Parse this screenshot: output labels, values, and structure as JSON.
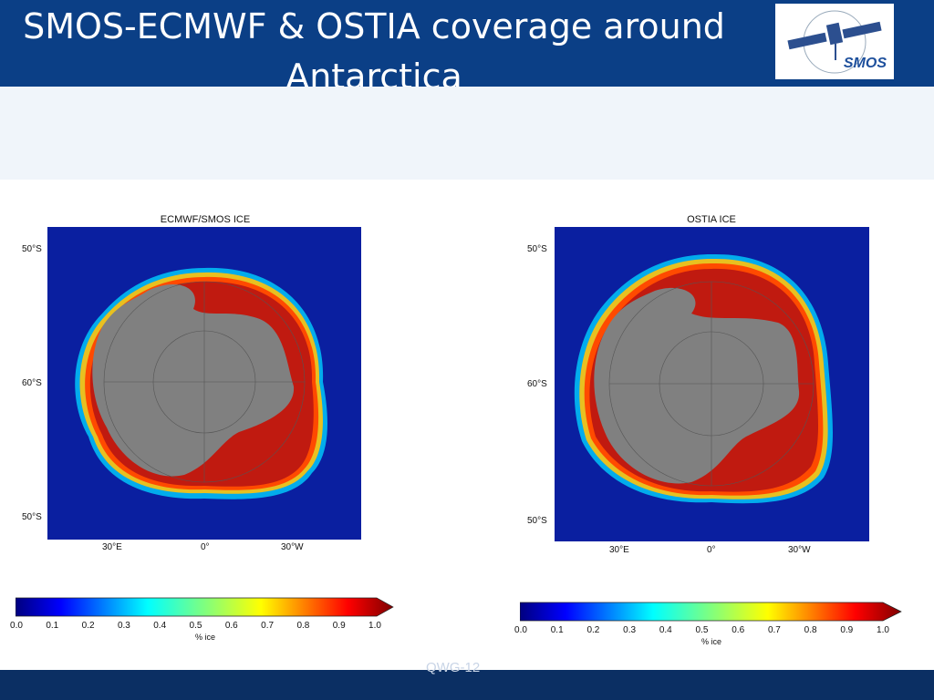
{
  "slide": {
    "title_line1": "SMOS-ECMWF & OSTIA coverage around",
    "title_line2": "Antarctica",
    "logo_text": "SMOS",
    "footer_text": "QWG-12"
  },
  "left_map": {
    "title": "ECMWF/SMOS ICE",
    "lat_labels": [
      "50°S",
      "60°S",
      "50°S"
    ],
    "lon_labels": [
      "30°E",
      "0°",
      "30°W"
    ],
    "colorbar": {
      "ticks": [
        "0.0",
        "0.1",
        "0.2",
        "0.3",
        "0.4",
        "0.5",
        "0.6",
        "0.7",
        "0.8",
        "0.9",
        "1.0"
      ],
      "label": "% ice"
    }
  },
  "right_map": {
    "title": "OSTIA ICE",
    "lat_labels": [
      "50°S",
      "60°S",
      "50°S"
    ],
    "lon_labels": [
      "30°E",
      "0°",
      "30°W"
    ],
    "colorbar": {
      "ticks": [
        "0.0",
        "0.1",
        "0.2",
        "0.3",
        "0.4",
        "0.5",
        "0.6",
        "0.7",
        "0.8",
        "0.9",
        "1.0"
      ],
      "label": "% ice"
    }
  },
  "colors": {
    "header": "#0b3f86",
    "ocean": "#0a1fa0",
    "land": "#808080",
    "ice_high": "#b01010"
  }
}
